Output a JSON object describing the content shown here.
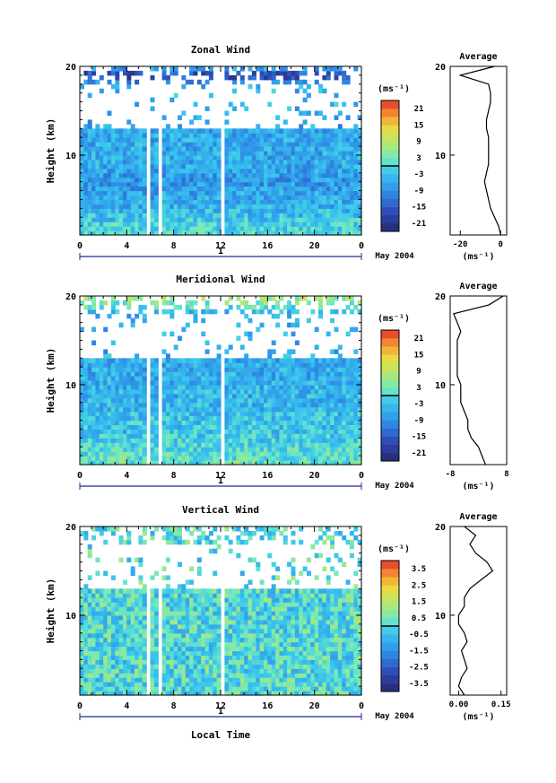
{
  "figure": {
    "date_label": "May 2004",
    "xlabel_bottom": "Local Time",
    "day_label": "1",
    "unit_label": "(ms⁻¹)",
    "avg_unit_label": "(ms⁻¹)",
    "avg_title": "Average"
  },
  "chart_data": [
    {
      "type": "heatmap",
      "title": "Zonal Wind",
      "xlabel": "",
      "ylabel": "Height (km)",
      "x_ticks": [
        "0",
        "4",
        "8",
        "12",
        "16",
        "20",
        "0"
      ],
      "xlim": [
        0,
        24
      ],
      "y_ticks": [
        "20",
        "10"
      ],
      "ylim": [
        1,
        20
      ],
      "colorbar_ticks": [
        "21",
        "15",
        "9",
        "3",
        "-3",
        "-9",
        "-15",
        "-21"
      ],
      "colorbar_range": [
        -24,
        24
      ],
      "data_gaps_hours": [
        [
          5.7,
          6.1
        ],
        [
          6.6,
          7.0
        ],
        [
          11.9,
          12.2
        ]
      ],
      "profile": {
        "title": "Average",
        "x_ticks": [
          "-20",
          "0"
        ],
        "xlim": [
          -25,
          3
        ],
        "y_ticks": [
          "20",
          "10"
        ],
        "height_km": [
          1,
          2,
          3,
          4,
          5,
          6,
          7,
          8,
          9,
          10,
          11,
          12,
          13,
          14,
          15,
          16,
          17,
          18,
          19,
          20
        ],
        "mean_wind": [
          0,
          -1,
          -3,
          -5,
          -6,
          -7,
          -8,
          -7,
          -6,
          -6,
          -6,
          -6,
          -7,
          -7,
          -6,
          -5,
          -5,
          -6,
          -20,
          -3
        ]
      }
    },
    {
      "type": "heatmap",
      "title": "Meridional Wind",
      "xlabel": "",
      "ylabel": "Height (km)",
      "x_ticks": [
        "0",
        "4",
        "8",
        "12",
        "16",
        "20",
        "0"
      ],
      "xlim": [
        0,
        24
      ],
      "y_ticks": [
        "20",
        "10"
      ],
      "ylim": [
        1,
        20
      ],
      "colorbar_ticks": [
        "21",
        "15",
        "9",
        "3",
        "-3",
        "-9",
        "-15",
        "-21"
      ],
      "colorbar_range": [
        -24,
        24
      ],
      "data_gaps_hours": [
        [
          5.7,
          6.1
        ],
        [
          6.6,
          7.0
        ],
        [
          11.9,
          12.2
        ]
      ],
      "profile": {
        "title": "Average",
        "x_ticks": [
          "-8",
          "8"
        ],
        "xlim": [
          -8,
          8
        ],
        "y_ticks": [
          "20",
          "10"
        ],
        "height_km": [
          1,
          2,
          3,
          4,
          5,
          6,
          7,
          8,
          9,
          10,
          11,
          12,
          13,
          14,
          15,
          16,
          17,
          18,
          19,
          20
        ],
        "mean_wind": [
          2,
          1,
          0,
          -2,
          -3,
          -3,
          -4,
          -5,
          -5,
          -5,
          -6,
          -6,
          -6,
          -6,
          -6,
          -5,
          -6,
          -7,
          3,
          7
        ]
      }
    },
    {
      "type": "heatmap",
      "title": "Vertical Wind",
      "xlabel": "Local Time",
      "ylabel": "Height (km)",
      "x_ticks": [
        "0",
        "4",
        "8",
        "12",
        "16",
        "20",
        "0"
      ],
      "xlim": [
        0,
        24
      ],
      "y_ticks": [
        "20",
        "10"
      ],
      "ylim": [
        1,
        20
      ],
      "colorbar_ticks": [
        "3.5",
        "2.5",
        "1.5",
        "0.5",
        "-0.5",
        "-1.5",
        "-2.5",
        "-3.5"
      ],
      "colorbar_range": [
        -4,
        4
      ],
      "data_gaps_hours": [
        [
          5.7,
          6.1
        ],
        [
          6.6,
          7.0
        ],
        [
          11.9,
          12.2
        ]
      ],
      "profile": {
        "title": "Average",
        "x_ticks": [
          "0.00",
          "0.15"
        ],
        "xlim": [
          -0.03,
          0.17
        ],
        "y_ticks": [
          "20",
          "10"
        ],
        "height_km": [
          1,
          2,
          3,
          4,
          5,
          6,
          7,
          8,
          9,
          10,
          11,
          12,
          13,
          14,
          15,
          16,
          17,
          18,
          19,
          20
        ],
        "mean_wind": [
          0.02,
          0.0,
          0.01,
          0.03,
          0.02,
          0.01,
          0.03,
          0.02,
          0.0,
          0.0,
          0.02,
          0.02,
          0.04,
          0.08,
          0.12,
          0.1,
          0.06,
          0.04,
          0.06,
          0.02
        ]
      }
    }
  ]
}
